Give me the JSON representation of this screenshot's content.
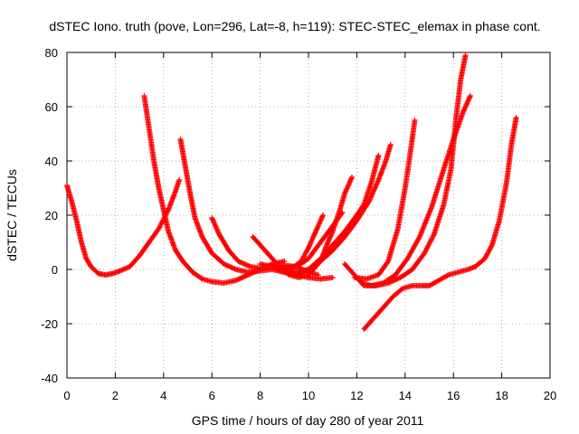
{
  "chart_data": {
    "type": "scatter",
    "title": "dSTEC Iono. truth (pove, Lon=296, Lat=-8, h=119): STEC-STEC_elemax in phase cont.",
    "xlabel": "GPS time / hours of day 280 of year 2011",
    "ylabel": "dSTEC  / TECUs",
    "xlim": [
      0,
      20
    ],
    "ylim": [
      -40,
      80
    ],
    "xticks": [
      0,
      2,
      4,
      6,
      8,
      10,
      12,
      14,
      16,
      18,
      20
    ],
    "yticks": [
      -40,
      -20,
      0,
      20,
      40,
      60,
      80
    ],
    "grid": true,
    "marker": "plus",
    "colors": {
      "series": "#ff0000",
      "grid": "#a0a0a0",
      "axis": "#000000"
    },
    "series": [
      {
        "points": [
          [
            0.0,
            31
          ],
          [
            0.2,
            25
          ],
          [
            0.4,
            18
          ],
          [
            0.6,
            10
          ],
          [
            0.8,
            4
          ],
          [
            1.0,
            1
          ],
          [
            1.3,
            -1.5
          ],
          [
            1.6,
            -2
          ],
          [
            1.9,
            -1.5
          ],
          [
            2.2,
            -0.5
          ],
          [
            2.6,
            1
          ],
          [
            3.0,
            5
          ],
          [
            3.4,
            10
          ],
          [
            3.8,
            15
          ],
          [
            4.2,
            22
          ],
          [
            4.5,
            29
          ],
          [
            4.65,
            33
          ]
        ]
      },
      {
        "points": [
          [
            3.2,
            64
          ],
          [
            3.4,
            52
          ],
          [
            3.6,
            40
          ],
          [
            3.8,
            30
          ],
          [
            4.0,
            22
          ],
          [
            4.2,
            14
          ],
          [
            4.5,
            7
          ],
          [
            4.8,
            3
          ],
          [
            5.2,
            -1
          ],
          [
            5.6,
            -3.5
          ],
          [
            6.0,
            -4.5
          ],
          [
            6.5,
            -5
          ],
          [
            7.0,
            -4
          ],
          [
            7.5,
            -2
          ],
          [
            8.0,
            0
          ],
          [
            8.5,
            2
          ],
          [
            9.0,
            3
          ]
        ]
      },
      {
        "points": [
          [
            4.7,
            48
          ],
          [
            4.9,
            38
          ],
          [
            5.1,
            28
          ],
          [
            5.3,
            19
          ],
          [
            5.6,
            12
          ],
          [
            6.0,
            6
          ],
          [
            6.5,
            2
          ],
          [
            7.0,
            0
          ],
          [
            7.5,
            -1
          ],
          [
            8.0,
            -0.5
          ],
          [
            8.5,
            0
          ],
          [
            9.0,
            -1
          ],
          [
            9.5,
            -2
          ],
          [
            10.0,
            -3
          ],
          [
            10.5,
            -3.5
          ],
          [
            11.0,
            -3
          ]
        ]
      },
      {
        "points": [
          [
            6.0,
            19
          ],
          [
            6.3,
            13
          ],
          [
            6.7,
            7
          ],
          [
            7.1,
            3
          ],
          [
            7.6,
            1
          ],
          [
            8.0,
            0.5
          ],
          [
            8.5,
            1
          ],
          [
            9.0,
            1.5
          ],
          [
            9.5,
            1
          ],
          [
            10.0,
            -1
          ],
          [
            10.4,
            -2
          ]
        ]
      },
      {
        "points": [
          [
            7.7,
            12
          ],
          [
            8.0,
            9
          ],
          [
            8.3,
            6
          ],
          [
            8.6,
            3
          ],
          [
            8.9,
            0
          ],
          [
            9.2,
            -2
          ],
          [
            9.6,
            -3
          ],
          [
            10.0,
            -2
          ],
          [
            10.5,
            3
          ],
          [
            10.8,
            10
          ],
          [
            11.0,
            14
          ],
          [
            11.3,
            22
          ],
          [
            11.5,
            28
          ],
          [
            11.8,
            34
          ]
        ]
      },
      {
        "points": [
          [
            8.0,
            2
          ],
          [
            8.5,
            1
          ],
          [
            9.0,
            0.5
          ],
          [
            9.4,
            1
          ],
          [
            9.7,
            3
          ],
          [
            10.0,
            8
          ],
          [
            10.3,
            14
          ],
          [
            10.6,
            20
          ]
        ]
      },
      {
        "points": [
          [
            8.5,
            1
          ],
          [
            9.0,
            0
          ],
          [
            9.5,
            1
          ],
          [
            10.0,
            4
          ],
          [
            10.5,
            10
          ],
          [
            11.0,
            16
          ],
          [
            11.4,
            21
          ]
        ]
      },
      {
        "points": [
          [
            8.5,
            1
          ],
          [
            9.0,
            -1
          ],
          [
            9.5,
            -2
          ],
          [
            10.0,
            0
          ],
          [
            10.5,
            4
          ],
          [
            11.0,
            9
          ],
          [
            11.5,
            14
          ],
          [
            12.0,
            20
          ],
          [
            12.3,
            24
          ],
          [
            12.6,
            32
          ],
          [
            12.9,
            42
          ]
        ]
      },
      {
        "points": [
          [
            9.0,
            0
          ],
          [
            9.5,
            -1
          ],
          [
            10.0,
            0
          ],
          [
            10.5,
            3
          ],
          [
            11.0,
            7
          ],
          [
            11.5,
            12
          ],
          [
            12.0,
            18
          ],
          [
            12.5,
            25
          ],
          [
            12.9,
            33
          ],
          [
            13.2,
            40
          ],
          [
            13.4,
            46
          ]
        ]
      },
      {
        "points": [
          [
            11.5,
            2
          ],
          [
            12.0,
            -3
          ],
          [
            12.3,
            -6
          ],
          [
            12.8,
            -6
          ],
          [
            13.3,
            -5
          ],
          [
            13.8,
            -3
          ],
          [
            14.3,
            0
          ],
          [
            14.8,
            6
          ],
          [
            15.2,
            13
          ],
          [
            15.6,
            24
          ],
          [
            15.9,
            37
          ],
          [
            16.1,
            55
          ],
          [
            16.3,
            70
          ],
          [
            16.5,
            79
          ]
        ]
      },
      {
        "points": [
          [
            12.2,
            -5
          ],
          [
            12.6,
            -6
          ],
          [
            13.1,
            -5
          ],
          [
            13.6,
            -2
          ],
          [
            14.1,
            4
          ],
          [
            14.6,
            12
          ],
          [
            15.1,
            23
          ],
          [
            15.6,
            37
          ],
          [
            16.0,
            48
          ],
          [
            16.4,
            58
          ],
          [
            16.7,
            64
          ]
        ]
      },
      {
        "points": [
          [
            11.9,
            -3
          ],
          [
            12.4,
            -3.5
          ],
          [
            12.9,
            -2
          ],
          [
            13.3,
            3
          ],
          [
            13.7,
            15
          ],
          [
            14.0,
            30
          ],
          [
            14.2,
            42
          ],
          [
            14.4,
            55
          ]
        ]
      },
      {
        "points": [
          [
            12.3,
            -22
          ],
          [
            12.6,
            -19
          ],
          [
            12.9,
            -16
          ],
          [
            13.2,
            -13
          ],
          [
            13.5,
            -10
          ],
          [
            13.9,
            -7
          ],
          [
            14.3,
            -6
          ],
          [
            14.7,
            -6
          ],
          [
            15.0,
            -6
          ],
          [
            15.4,
            -4
          ],
          [
            15.8,
            -2
          ],
          [
            16.2,
            -1
          ],
          [
            16.6,
            0
          ],
          [
            16.9,
            1
          ],
          [
            17.3,
            4
          ],
          [
            17.6,
            9
          ],
          [
            17.9,
            18
          ],
          [
            18.2,
            32
          ],
          [
            18.4,
            46
          ],
          [
            18.6,
            56
          ]
        ]
      }
    ]
  }
}
